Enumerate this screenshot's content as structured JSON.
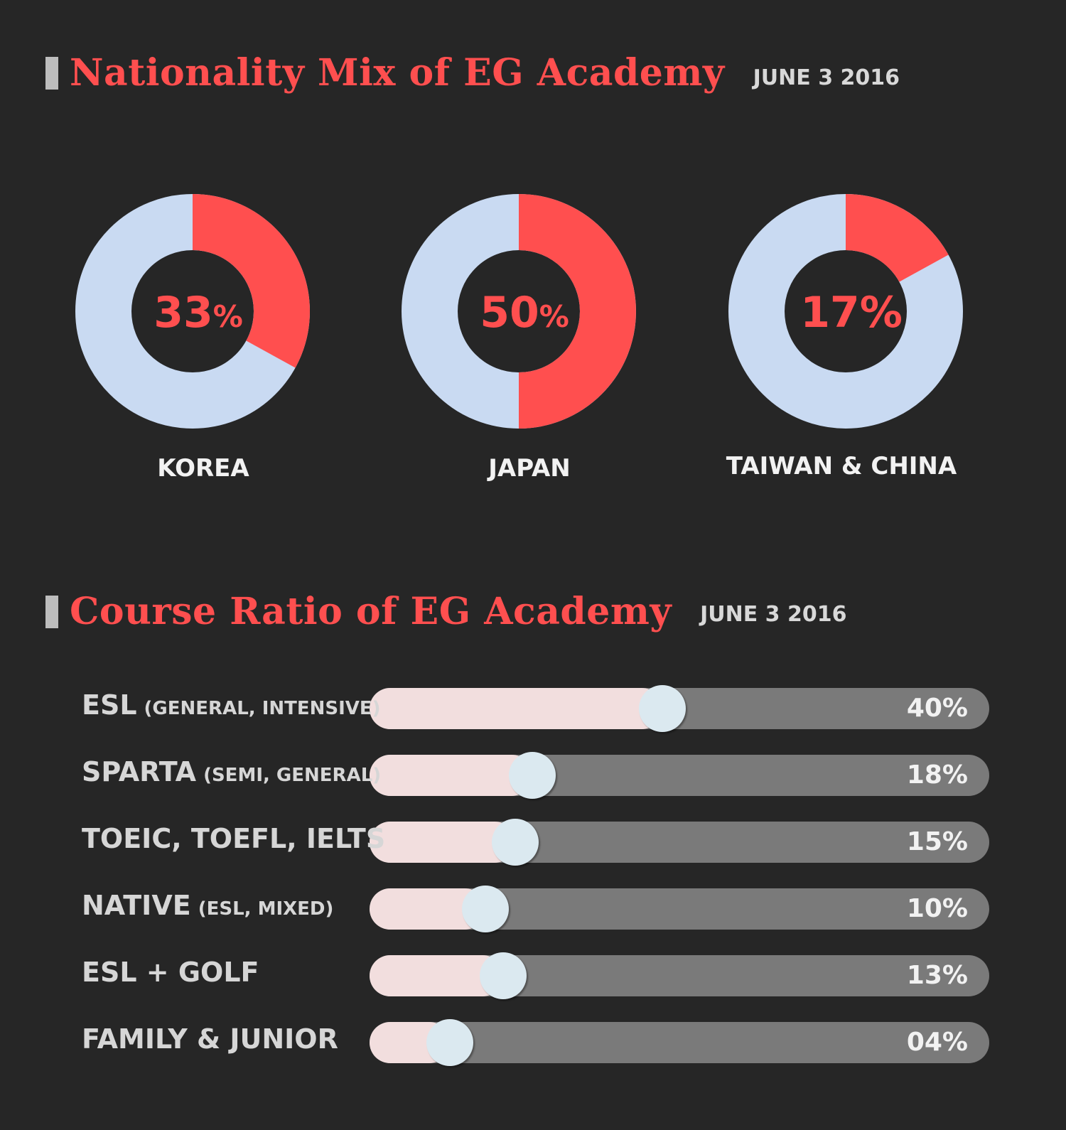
{
  "section1": {
    "title": "Nationality Mix of EG Academy",
    "date": "JUNE 3 2016"
  },
  "section2": {
    "title": "Course Ratio of EG Academy",
    "date": "JUNE 3 2016"
  },
  "colors": {
    "accent": "#ff4f4f",
    "ring_bg": "#c9daf2",
    "track": "#7a7a7a",
    "fill": "#f2dede",
    "knob": "#dbe9f0"
  },
  "chart_data": [
    {
      "type": "pie",
      "title": "Nationality Mix of EG Academy",
      "slices": [
        {
          "label": "KOREA",
          "value": 33,
          "display": "33%"
        },
        {
          "label": "JAPAN",
          "value": 50,
          "display": "50%"
        },
        {
          "label": "TAIWAN & CHINA",
          "value": 17,
          "display": "17%"
        }
      ]
    },
    {
      "type": "bar",
      "title": "Course Ratio of EG Academy",
      "categories": [
        {
          "main": "ESL",
          "sub": "(GENERAL, INTENSIVE)"
        },
        {
          "main": "SPARTA",
          "sub": "(SEMI, GENERAL)"
        },
        {
          "main": "TOEIC, TOEFL, IELTS",
          "sub": ""
        },
        {
          "main": "NATIVE",
          "sub": "(ESL, MIXED)"
        },
        {
          "main": "ESL + GOLF",
          "sub": ""
        },
        {
          "main": "FAMILY & JUNIOR",
          "sub": ""
        }
      ],
      "values": [
        40,
        18,
        15,
        10,
        13,
        4
      ],
      "displays": [
        "40%",
        "18%",
        "15%",
        "10%",
        "13%",
        "04%"
      ]
    }
  ]
}
